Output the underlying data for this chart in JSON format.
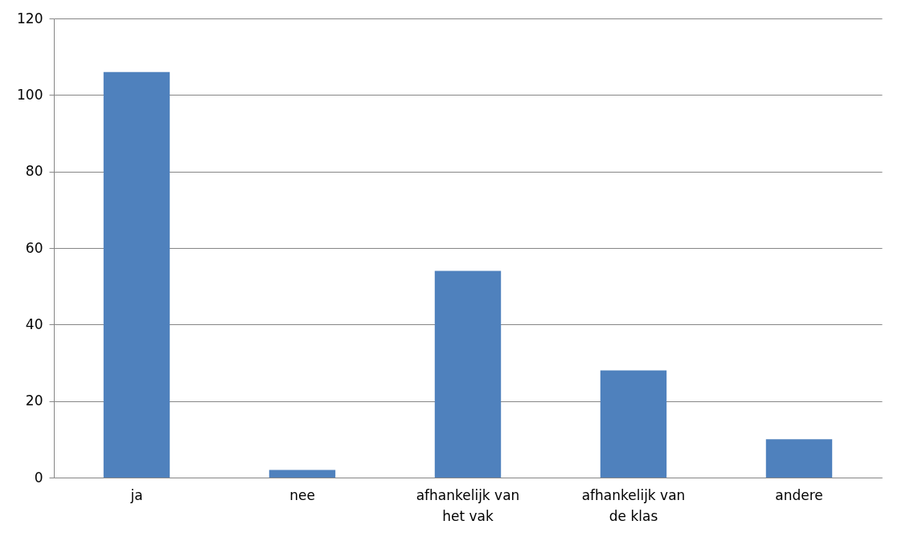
{
  "chart_data": {
    "type": "bar",
    "categories": [
      "ja",
      "nee",
      "afhankelijk van het vak",
      "afhankelijk van de klas",
      "andere"
    ],
    "values": [
      106,
      2,
      54,
      28,
      10
    ],
    "color": "#4f81bd",
    "ylim": [
      0,
      120
    ],
    "yticks": [
      0,
      20,
      40,
      60,
      80,
      100,
      120
    ],
    "grid": "y"
  }
}
